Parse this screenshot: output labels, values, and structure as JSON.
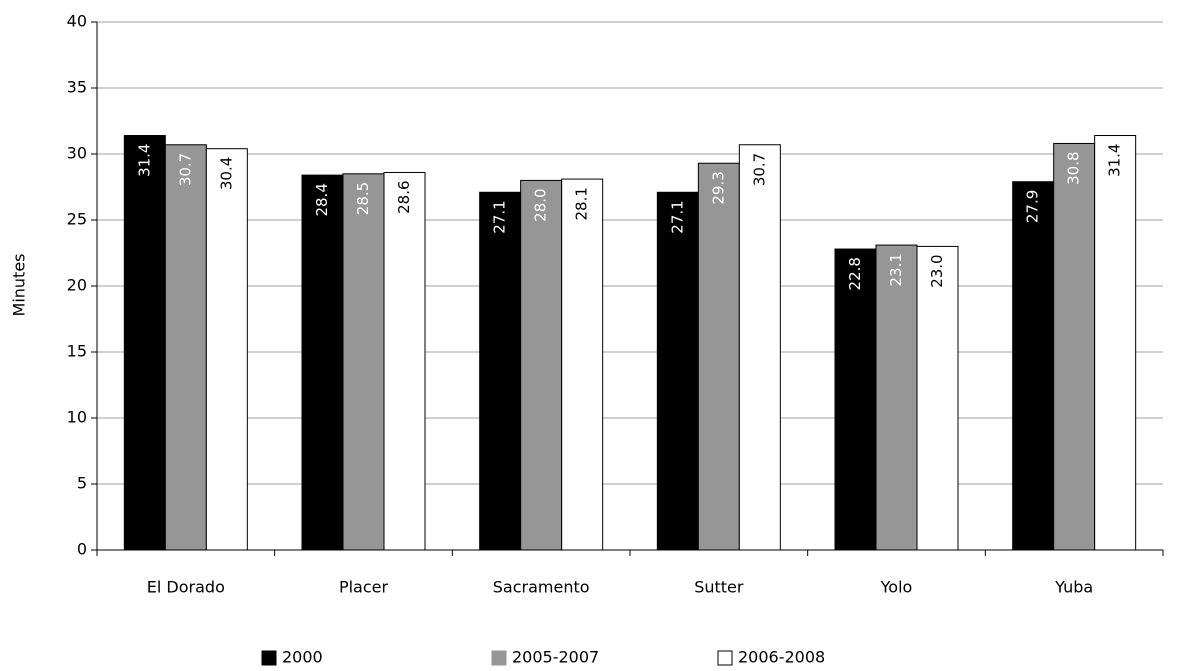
{
  "chart_data": {
    "type": "bar",
    "y_label": "Minutes",
    "categories": [
      "El Dorado",
      "Placer",
      "Sacramento",
      "Sutter",
      "Yolo",
      "Yuba"
    ],
    "series": [
      {
        "name": "2000",
        "color": "#000000",
        "values": [
          31.4,
          28.4,
          27.1,
          27.1,
          22.8,
          27.9
        ],
        "value_labels": [
          "31.4",
          "28.4",
          "27.1",
          "27.1",
          "22.8",
          "27.9"
        ]
      },
      {
        "name": "2005-2007",
        "color": "#969696",
        "values": [
          30.7,
          28.5,
          28.0,
          29.3,
          23.1,
          30.8
        ],
        "value_labels": [
          "30.7",
          "28.5",
          "28.0",
          "29.3",
          "23.1",
          "30.8"
        ]
      },
      {
        "name": "2006-2008",
        "color": "#ffffff",
        "values": [
          30.4,
          28.6,
          28.1,
          30.7,
          23.0,
          31.4
        ],
        "value_labels": [
          "30.4",
          "28.6",
          "28.1",
          "30.7",
          "23.0",
          "31.4"
        ]
      }
    ],
    "ylim": [
      0,
      40
    ],
    "yticks": [
      0,
      5,
      10,
      15,
      20,
      25,
      30,
      35,
      40
    ],
    "grid": true,
    "legend": "bottom"
  }
}
